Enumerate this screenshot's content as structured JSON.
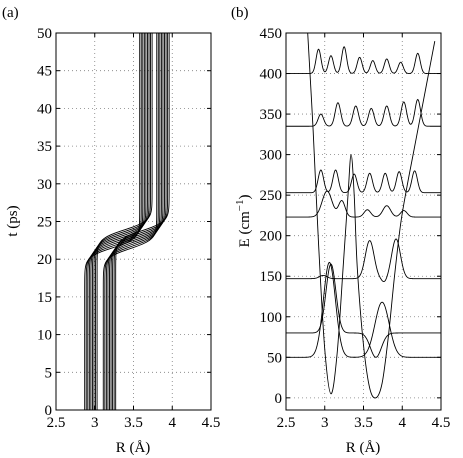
{
  "chart_data": [
    {
      "type": "line",
      "panel_label": "(a)",
      "xlabel": "R (Å)",
      "ylabel": "t (ps)",
      "xlim": [
        2.5,
        4.5
      ],
      "ylim": [
        0,
        50
      ],
      "xticks": [
        "2.5",
        "3",
        "3.5",
        "4",
        "4.5"
      ],
      "yticks": [
        "0",
        "5",
        "10",
        "15",
        "20",
        "25",
        "30",
        "35",
        "40",
        "45",
        "50"
      ],
      "grid": true,
      "trajectories": {
        "description_of_shape": "bundle of trajectories, each constant in R until ~t=21-24 ps, then a smooth step to a larger R",
        "R_start": [
          2.87,
          2.89,
          2.91,
          2.93,
          2.95,
          2.97,
          2.99,
          3.01,
          3.03,
          3.11,
          3.13,
          3.15,
          3.17,
          3.19,
          3.21,
          3.23,
          3.25,
          3.27
        ],
        "R_end": [
          3.58,
          3.6,
          3.62,
          3.64,
          3.66,
          3.68,
          3.7,
          3.72,
          3.74,
          3.8,
          3.82,
          3.84,
          3.86,
          3.88,
          3.9,
          3.92,
          3.94,
          3.96
        ],
        "t_switch": [
          21.5,
          21.8,
          22.1,
          22.4,
          22.7,
          23.0,
          23.3,
          23.6,
          23.9,
          21.4,
          21.7,
          22.0,
          22.3,
          22.6,
          22.9,
          23.2,
          23.5,
          23.8
        ],
        "switch_width_ps": 1.2
      }
    },
    {
      "type": "line",
      "panel_label": "(b)",
      "xlabel": "R (Å)",
      "ylabel": "E (cm",
      "ylabel_sup": "−1",
      "ylabel_close": ")",
      "xlim": [
        2.5,
        4.5
      ],
      "ylim": [
        -15,
        450
      ],
      "xticks": [
        "2.5",
        "3",
        "3.5",
        "4",
        "4.5"
      ],
      "yticks": [
        "0",
        "50",
        "100",
        "150",
        "200",
        "250",
        "300",
        "350",
        "400",
        "450"
      ],
      "grid": true,
      "potential": {
        "x": [
          2.78,
          2.85,
          2.92,
          3.0,
          3.08,
          3.16,
          3.24,
          3.3,
          3.34,
          3.38,
          3.42,
          3.5,
          3.58,
          3.66,
          3.74,
          3.82,
          3.9,
          3.98,
          4.06,
          4.14,
          4.22,
          4.3,
          4.36,
          4.42
        ],
        "y": [
          450,
          330,
          190,
          60,
          5,
          55,
          165,
          250,
          300,
          250,
          160,
          65,
          12,
          0,
          18,
          75,
          150,
          215,
          260,
          300,
          340,
          380,
          410,
          440
        ]
      },
      "levels": [
        {
          "E": 50,
          "lobes": [
            {
              "c": 3.06,
              "w": 0.11,
              "a": 117
            },
            {
              "c": 3.74,
              "w": 0.13,
              "a": 68
            }
          ]
        },
        {
          "E": 80,
          "lobes": [
            {
              "c": 3.08,
              "w": 0.09,
              "a": 85
            },
            {
              "c": 3.66,
              "w": 0.1,
              "a": -30
            }
          ]
        },
        {
          "E": 147,
          "lobes": [
            {
              "c": 2.98,
              "w": 0.07,
              "a": 4
            },
            {
              "c": 3.58,
              "w": 0.08,
              "a": 47
            },
            {
              "c": 3.92,
              "w": 0.08,
              "a": 49
            },
            {
              "c": 3.77,
              "w": 0.05,
              "a": -5
            }
          ]
        },
        {
          "E": 223,
          "lobes": [
            {
              "c": 3.03,
              "w": 0.09,
              "a": 32
            },
            {
              "c": 3.22,
              "w": 0.06,
              "a": 20
            },
            {
              "c": 3.55,
              "w": 0.06,
              "a": 9
            },
            {
              "c": 3.8,
              "w": 0.07,
              "a": 14
            },
            {
              "c": 4.02,
              "w": 0.06,
              "a": 8
            }
          ]
        },
        {
          "E": 253,
          "lobes": [
            {
              "c": 2.95,
              "w": 0.05,
              "a": 28
            },
            {
              "c": 3.14,
              "w": 0.05,
              "a": 28
            },
            {
              "c": 3.38,
              "w": 0.05,
              "a": 23
            },
            {
              "c": 3.58,
              "w": 0.05,
              "a": 24
            },
            {
              "c": 3.78,
              "w": 0.05,
              "a": 24
            },
            {
              "c": 3.96,
              "w": 0.05,
              "a": 26
            },
            {
              "c": 4.16,
              "w": 0.05,
              "a": 27
            }
          ]
        },
        {
          "E": 335,
          "lobes": [
            {
              "c": 2.95,
              "w": 0.05,
              "a": 15
            },
            {
              "c": 3.17,
              "w": 0.05,
              "a": 29
            },
            {
              "c": 3.4,
              "w": 0.05,
              "a": 25
            },
            {
              "c": 3.6,
              "w": 0.05,
              "a": 22
            },
            {
              "c": 3.8,
              "w": 0.05,
              "a": 25
            },
            {
              "c": 4.02,
              "w": 0.05,
              "a": 30
            },
            {
              "c": 4.2,
              "w": 0.05,
              "a": 33
            }
          ]
        },
        {
          "E": 400,
          "lobes": [
            {
              "c": 2.92,
              "w": 0.045,
              "a": 30
            },
            {
              "c": 3.08,
              "w": 0.045,
              "a": 22
            },
            {
              "c": 3.25,
              "w": 0.045,
              "a": 33
            },
            {
              "c": 3.45,
              "w": 0.045,
              "a": 20
            },
            {
              "c": 3.62,
              "w": 0.045,
              "a": 16
            },
            {
              "c": 3.8,
              "w": 0.045,
              "a": 18
            },
            {
              "c": 3.98,
              "w": 0.045,
              "a": 14
            },
            {
              "c": 4.2,
              "w": 0.045,
              "a": 25
            }
          ]
        }
      ]
    }
  ]
}
